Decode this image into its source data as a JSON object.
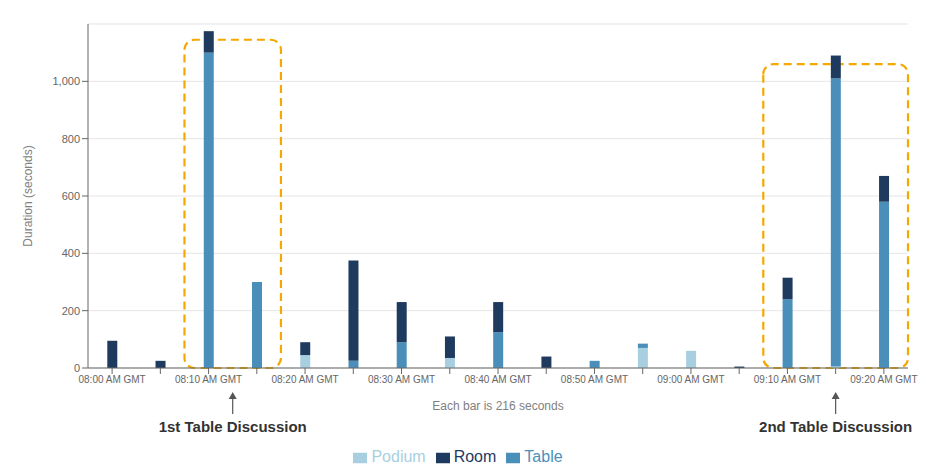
{
  "chart_data": {
    "type": "bar",
    "stacked": true,
    "ylabel": "Duration (seconds)",
    "xlabel": "Each bar is 216 seconds",
    "categories": [
      "08:00 AM GMT",
      null,
      "08:10 AM GMT",
      null,
      "08:20 AM GMT",
      null,
      "08:30 AM GMT",
      null,
      "08:40 AM GMT",
      null,
      "08:50 AM GMT",
      null,
      "09:00 AM GMT",
      null,
      "09:10 AM GMT",
      null,
      "09:20 AM GMT"
    ],
    "series": [
      {
        "name": "Podium",
        "color": "#a8cfe0",
        "values": [
          0,
          0,
          0,
          0,
          45,
          0,
          0,
          35,
          0,
          0,
          0,
          70,
          60,
          0,
          0,
          5,
          0
        ]
      },
      {
        "name": "Table",
        "color": "#4a8fba",
        "values": [
          0,
          0,
          1100,
          300,
          0,
          25,
          90,
          0,
          125,
          0,
          25,
          15,
          0,
          0,
          240,
          1005,
          580
        ]
      },
      {
        "name": "Room",
        "color": "#1e3a5f",
        "values": [
          95,
          25,
          75,
          0,
          45,
          350,
          140,
          75,
          105,
          40,
          0,
          0,
          0,
          5,
          75,
          80,
          90
        ]
      }
    ],
    "ylim": [
      0,
      1200
    ],
    "yticks": [
      0,
      200,
      400,
      600,
      800,
      {
        "value": 1000,
        "label": "1,000"
      }
    ],
    "grid": true,
    "legend": "bottom",
    "annotations": [
      {
        "text": "1st Table Discussion",
        "x": [
          2,
          3
        ],
        "y": [
          0,
          1145
        ],
        "color": "#f5a800"
      },
      {
        "text": "2nd Table Discussion",
        "x": [
          14,
          16
        ],
        "y": [
          0,
          1060
        ],
        "color": "#f5a800"
      }
    ]
  }
}
